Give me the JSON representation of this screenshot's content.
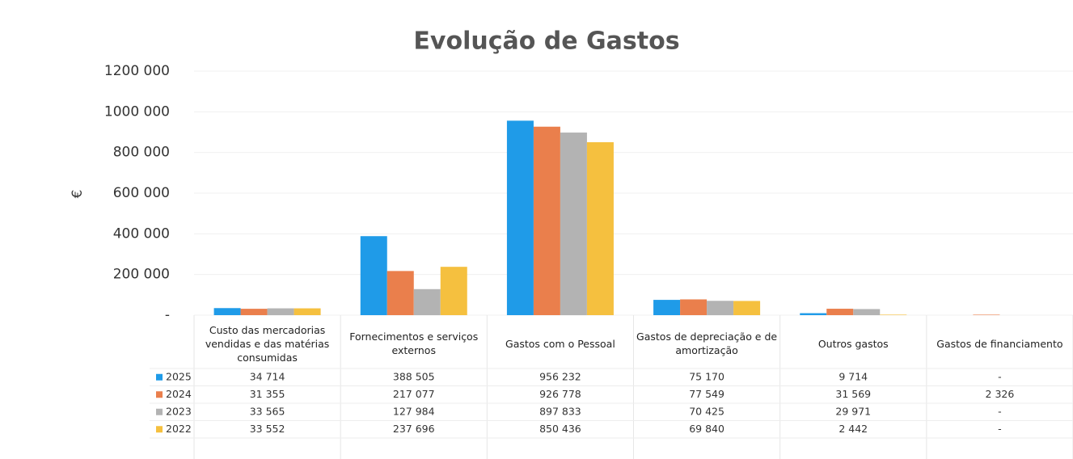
{
  "chart_data": {
    "type": "bar",
    "title": "Evolução de Gastos",
    "y_label": "€",
    "categories": [
      "Custo das mercadorias vendidas e das matérias consumidas",
      "Fornecimentos e serviços externos",
      "Gastos com o Pessoal",
      "Gastos de depreciação e de amortização",
      "Outros gastos",
      "Gastos de financiamento"
    ],
    "series": [
      {
        "name": "2025",
        "color": "#1f9be8",
        "values": [
          34714,
          388505,
          956232,
          75170,
          9714,
          0
        ],
        "value_labels": [
          "34 714",
          "388 505",
          "956 232",
          "75 170",
          "9 714",
          "-"
        ]
      },
      {
        "name": "2024",
        "color": "#ea7f4c",
        "values": [
          31355,
          217077,
          926778,
          77549,
          31569,
          2326
        ],
        "value_labels": [
          "31 355",
          "217 077",
          "926 778",
          "77 549",
          "31 569",
          "2 326"
        ]
      },
      {
        "name": "2023",
        "color": "#b3b3b3",
        "values": [
          33565,
          127984,
          897833,
          70425,
          29971,
          0
        ],
        "value_labels": [
          "33 565",
          "127 984",
          "897 833",
          "70 425",
          "29 971",
          "-"
        ]
      },
      {
        "name": "2022",
        "color": "#f5c03f",
        "values": [
          33552,
          237696,
          850436,
          69840,
          2442,
          0
        ],
        "value_labels": [
          "33 552",
          "237 696",
          "850 436",
          "69 840",
          "2 442",
          "-"
        ]
      }
    ],
    "ylim": [
      0,
      1200000
    ],
    "yticks": [
      {
        "value": 0,
        "label": "-"
      },
      {
        "value": 200000,
        "label": "200 000"
      },
      {
        "value": 400000,
        "label": "400 000"
      },
      {
        "value": 600000,
        "label": "600 000"
      },
      {
        "value": 800000,
        "label": "800 000"
      },
      {
        "value": 1000000,
        "label": "1000 000"
      },
      {
        "value": 1200000,
        "label": "1200 000"
      }
    ],
    "grid": true
  }
}
